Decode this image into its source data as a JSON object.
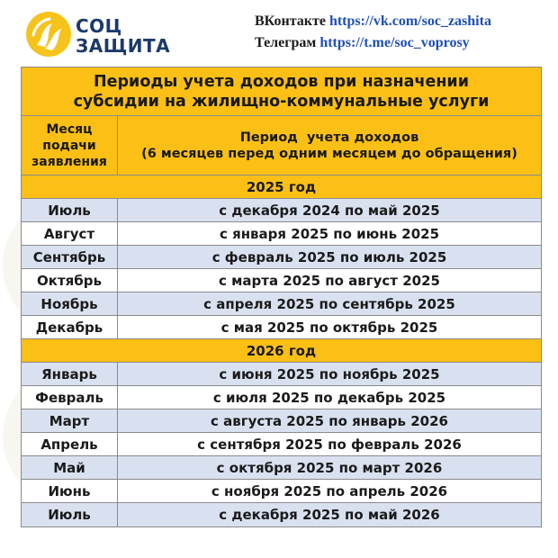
{
  "brand": {
    "line1": "СОЦ",
    "line2": "ЗАЩИТА"
  },
  "links": {
    "vk_label": "ВКонтакте ",
    "vk_url": "https://vk.com/soc_zashita",
    "tg_label": "Телеграм ",
    "tg_url": "https://t.me/soc_voprosy"
  },
  "table": {
    "title_line1": "Периоды учета доходов при назначении",
    "title_line2": "субсидии на жилищно-коммунальные услуги",
    "col1_header": [
      "Месяц",
      "подачи",
      "заявления"
    ],
    "col2_header": [
      "Период  учета доходов",
      "(6 месяцев перед одним месяцем до обращения)"
    ],
    "groups": [
      {
        "year": "2025 год",
        "rows": [
          {
            "month": "Июль",
            "period": "с декабря 2024 по май 2025"
          },
          {
            "month": "Август",
            "period": "с января 2025 по июнь 2025"
          },
          {
            "month": "Сентябрь",
            "period": "с февраль 2025 по июль 2025"
          },
          {
            "month": "Октябрь",
            "period": "с марта 2025 по август 2025"
          },
          {
            "month": "Ноябрь",
            "period": "с апреля 2025 по сентябрь 2025"
          },
          {
            "month": "Декабрь",
            "period": "с мая 2025 по октябрь 2025"
          }
        ]
      },
      {
        "year": "2026 год",
        "rows": [
          {
            "month": "Январь",
            "period": "с июня 2025 по ноябрь 2025"
          },
          {
            "month": "Февраль",
            "period": "с июля 2025 по декабрь 2025"
          },
          {
            "month": "Март",
            "period": "с августа 2025 по январь 2026"
          },
          {
            "month": "Апрель",
            "period": "с сентября 2025 по февраль 2026"
          },
          {
            "month": "Май",
            "period": "с октября 2025 по март 2026"
          },
          {
            "month": "Июнь",
            "period": "с ноября 2025 по апрель 2026"
          },
          {
            "month": "Июль",
            "period": "с декабря 2025 по май 2026"
          }
        ]
      }
    ]
  },
  "colors": {
    "accent": "#fbbf15",
    "stripe": "#d9e1f1",
    "brand": "#1b3a6b",
    "link": "#1e4fb2"
  }
}
